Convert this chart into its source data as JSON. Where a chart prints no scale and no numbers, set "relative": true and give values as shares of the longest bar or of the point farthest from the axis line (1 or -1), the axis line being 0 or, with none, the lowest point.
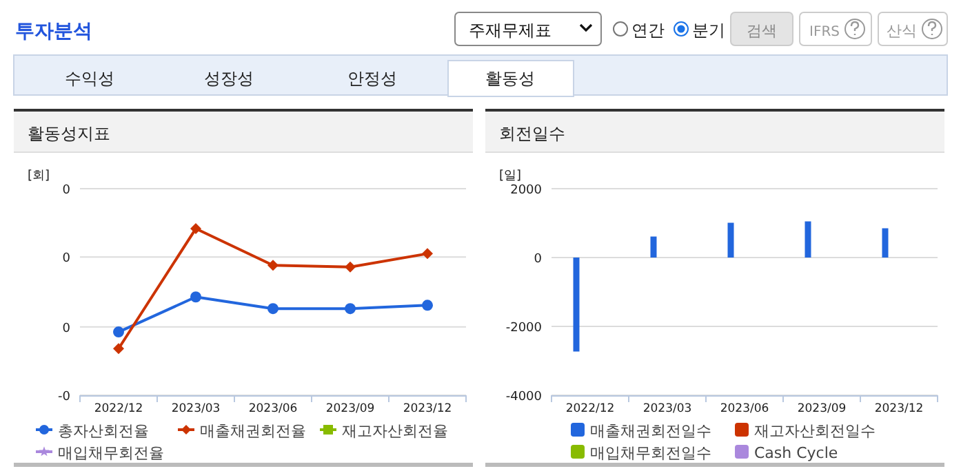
{
  "chart_data": [
    {
      "type": "other",
      "title": "투자분석",
      "annotations": [
        "주재무제표",
        "연간",
        "분기",
        "검색",
        "IFRS",
        "산식",
        "수익성",
        "성장성",
        "안정성",
        "활동성"
      ]
    },
    {
      "type": "line",
      "title": "활동성지표",
      "ylabel": "[회]",
      "relative": true,
      "ref_lines": [
        {
          "axis": "y",
          "value": 0
        },
        {
          "axis": "y",
          "value": 0.41
        },
        {
          "axis": "y",
          "value": 0.83
        },
        {
          "axis": "y",
          "value": 1.24
        }
      ],
      "annotations": [
        "-0",
        "0",
        "0",
        "0"
      ],
      "categories": [
        "2022/12",
        "2023/03",
        "2023/06",
        "2023/09",
        "2023/12"
      ],
      "legend": "bottom",
      "series": [
        {
          "name": "총자산회전율",
          "color": "#2266dd",
          "marker": "circle",
          "values": [
            0.38,
            0.59,
            0.52,
            0.52,
            0.54
          ]
        },
        {
          "name": "매출채권회전율",
          "color": "#cc3300",
          "marker": "diamond",
          "values": [
            0.28,
            1,
            0.78,
            0.77,
            0.85
          ]
        },
        {
          "name": "재고자산회전율",
          "color": "#88bb00",
          "marker": "square",
          "values": [
            null,
            null,
            null,
            null,
            null
          ]
        },
        {
          "name": "매입채무회전율",
          "color": "#aa88dd",
          "marker": "star",
          "values": [
            null,
            null,
            null,
            null,
            null
          ]
        }
      ]
    },
    {
      "type": "bar",
      "title": "회전일수",
      "ylabel": "[일]",
      "categories": [
        "2022/12",
        "2023/03",
        "2023/06",
        "2023/09",
        "2023/12"
      ],
      "ylim": [
        -4000,
        2000
      ],
      "yticks": [
        -4000,
        -2000,
        0,
        2000
      ],
      "grid": "y",
      "legend": "bottom",
      "series": [
        {
          "name": "매출채권회전일수",
          "color": "#2266dd",
          "values": [
            -2730,
            610,
            1010,
            1050,
            850
          ]
        },
        {
          "name": "재고자산회전일수",
          "color": "#cc3300",
          "values": [
            null,
            null,
            null,
            null,
            null
          ]
        },
        {
          "name": "매입채무회전일수",
          "color": "#88bb00",
          "values": [
            null,
            null,
            null,
            null,
            null
          ]
        },
        {
          "name": "Cash Cycle",
          "color": "#aa88dd",
          "values": [
            null,
            null,
            null,
            null,
            null
          ]
        }
      ]
    }
  ]
}
